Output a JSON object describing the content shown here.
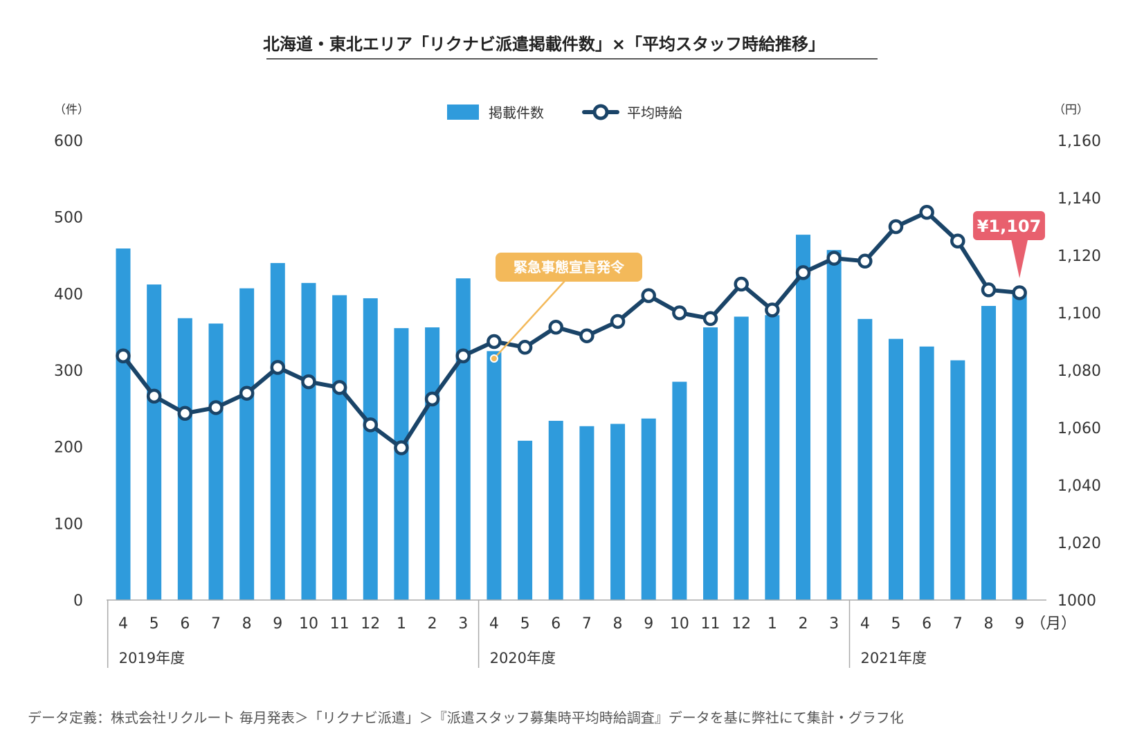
{
  "title": "北海道・東北エリア「リクナビ派遣掲載件数」×「平均スタッフ時給推移」",
  "footer": "データ定義：株式会社リクルート 毎月発表＞「リクナビ派遣」＞『派遣スタッフ募集時平均時給調査』データを基に弊社にて集計・グラフ化",
  "colors": {
    "bar": "#2f9bdc",
    "line": "#1a4468",
    "point_fill": "#ffffff",
    "callout_orange": "#f3b95a",
    "callout_red": "#e8606e",
    "axis": "#aaaaaa"
  },
  "chart_data": {
    "type": "bar",
    "title": "北海道・東北エリア「リクナビ派遣掲載件数」×「平均スタッフ時給推移」",
    "left_unit": "（件）",
    "right_unit": "（円）",
    "month_unit": "（月）",
    "legend_position": "top-center",
    "categories": [
      "4",
      "5",
      "6",
      "7",
      "8",
      "9",
      "10",
      "11",
      "12",
      "1",
      "2",
      "3",
      "4",
      "5",
      "6",
      "7",
      "8",
      "9",
      "10",
      "11",
      "12",
      "1",
      "2",
      "3",
      "4",
      "5",
      "6",
      "7",
      "8",
      "9"
    ],
    "year_groups": [
      {
        "label": "2019年度",
        "count": 12
      },
      {
        "label": "2020年度",
        "count": 12
      },
      {
        "label": "2021年度",
        "count": 6
      }
    ],
    "y_left": {
      "min": 0,
      "max": 600,
      "ticks": [
        "0",
        "100",
        "200",
        "300",
        "400",
        "500",
        "600"
      ]
    },
    "y_right": {
      "min": 1000,
      "max": 1160,
      "ticks": [
        "1000",
        "1,020",
        "1,040",
        "1,060",
        "1,080",
        "1,100",
        "1,120",
        "1,140",
        "1,160"
      ]
    },
    "series": [
      {
        "name": "掲載件数",
        "type": "bar",
        "axis": "left",
        "values": [
          459,
          412,
          368,
          361,
          407,
          440,
          414,
          398,
          394,
          355,
          356,
          420,
          325,
          208,
          234,
          227,
          230,
          237,
          285,
          356,
          370,
          372,
          477,
          457,
          367,
          341,
          331,
          313,
          384,
          400
        ]
      },
      {
        "name": "平均時給",
        "type": "line",
        "axis": "right",
        "values": [
          1085,
          1071,
          1065,
          1067,
          1072,
          1081,
          1076,
          1074,
          1061,
          1053,
          1070,
          1085,
          1090,
          1088,
          1095,
          1092,
          1097,
          1106,
          1100,
          1098,
          1110,
          1101,
          1114,
          1119,
          1118,
          1130,
          1135,
          1125,
          1108,
          1107
        ]
      }
    ],
    "annotations": [
      {
        "text": "緊急事態宣言発令",
        "index": 12
      },
      {
        "text": "¥1,107",
        "index": 29
      }
    ]
  }
}
